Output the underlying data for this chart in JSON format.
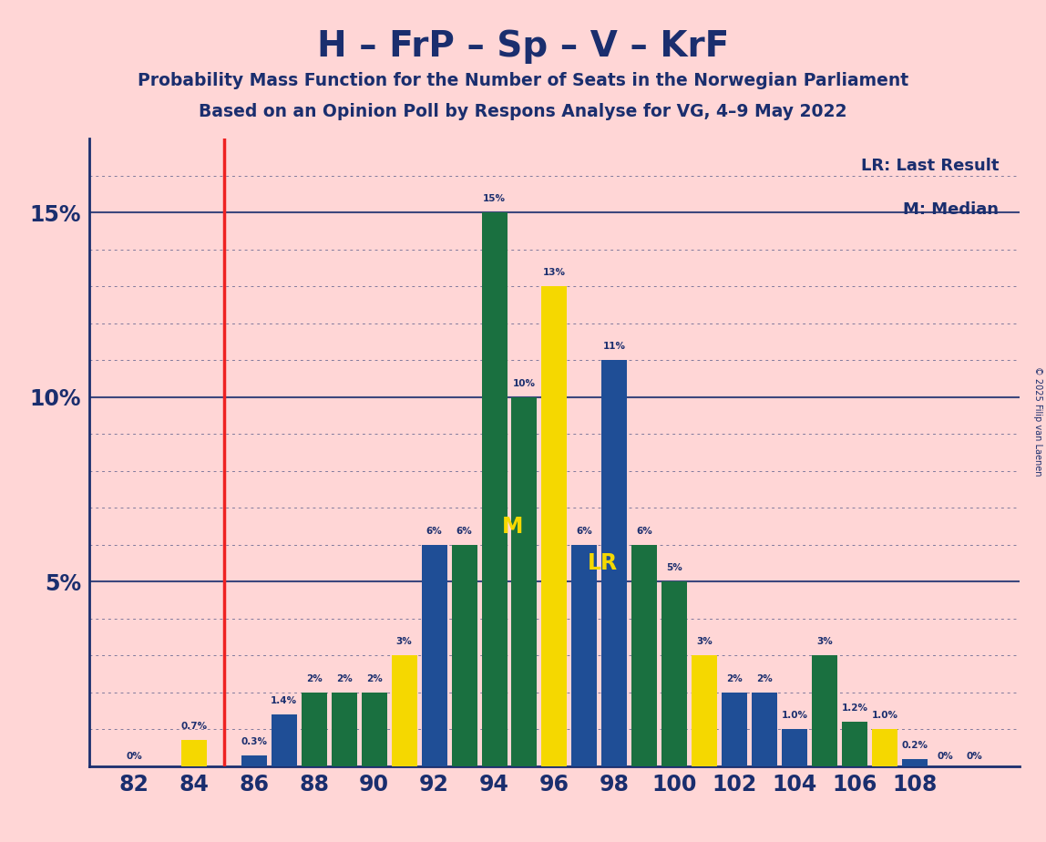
{
  "title": "H – FrP – Sp – V – KrF",
  "subtitle1": "Probability Mass Function for the Number of Seats in the Norwegian Parliament",
  "subtitle2": "Based on an Opinion Poll by Respons Analyse for VG, 4–9 May 2022",
  "copyright": "© 2025 Filip van Laenen",
  "background_color": "#ffd6d6",
  "bars": [
    {
      "x": 82,
      "value": 0.0,
      "color": "#1f4e96",
      "label": "0%"
    },
    {
      "x": 84,
      "value": 0.7,
      "color": "#f5d800",
      "label": "0.7%"
    },
    {
      "x": 86,
      "value": 0.3,
      "color": "#1f4e96",
      "label": "0.3%"
    },
    {
      "x": 87,
      "value": 1.4,
      "color": "#1f4e96",
      "label": "1.4%"
    },
    {
      "x": 88,
      "value": 2.0,
      "color": "#1a7040",
      "label": "2%"
    },
    {
      "x": 89,
      "value": 2.0,
      "color": "#1a7040",
      "label": "2%"
    },
    {
      "x": 90,
      "value": 2.0,
      "color": "#1a7040",
      "label": "2%"
    },
    {
      "x": 91,
      "value": 3.0,
      "color": "#f5d800",
      "label": "3%"
    },
    {
      "x": 92,
      "value": 6.0,
      "color": "#1f4e96",
      "label": "6%"
    },
    {
      "x": 93,
      "value": 6.0,
      "color": "#1a7040",
      "label": "6%"
    },
    {
      "x": 94,
      "value": 15.0,
      "color": "#1a7040",
      "label": "15%"
    },
    {
      "x": 95,
      "value": 10.0,
      "color": "#1a7040",
      "label": "10%"
    },
    {
      "x": 96,
      "value": 13.0,
      "color": "#f5d800",
      "label": "13%"
    },
    {
      "x": 97,
      "value": 6.0,
      "color": "#1f4e96",
      "label": "6%"
    },
    {
      "x": 98,
      "value": 11.0,
      "color": "#1f4e96",
      "label": "11%"
    },
    {
      "x": 99,
      "value": 6.0,
      "color": "#1a7040",
      "label": "6%"
    },
    {
      "x": 100,
      "value": 5.0,
      "color": "#1a7040",
      "label": "5%"
    },
    {
      "x": 101,
      "value": 3.0,
      "color": "#f5d800",
      "label": "3%"
    },
    {
      "x": 102,
      "value": 2.0,
      "color": "#1f4e96",
      "label": "2%"
    },
    {
      "x": 103,
      "value": 2.0,
      "color": "#1f4e96",
      "label": "2%"
    },
    {
      "x": 104,
      "value": 1.0,
      "color": "#1f4e96",
      "label": "1.0%"
    },
    {
      "x": 105,
      "value": 3.0,
      "color": "#1a7040",
      "label": "3%"
    },
    {
      "x": 106,
      "value": 1.2,
      "color": "#1a7040",
      "label": "1.2%"
    },
    {
      "x": 107,
      "value": 1.0,
      "color": "#f5d800",
      "label": "1.0%"
    },
    {
      "x": 108,
      "value": 0.2,
      "color": "#1f4e96",
      "label": "0.2%"
    },
    {
      "x": 109,
      "value": 0.0,
      "color": "#1f4e96",
      "label": "0%"
    },
    {
      "x": 110,
      "value": 0.0,
      "color": "#1f4e96",
      "label": "0%"
    }
  ],
  "lr_x": 85.0,
  "median_x": 95,
  "lr_line_color": "#ee2222",
  "title_color": "#1a2e6e",
  "subtitle_color": "#1a2e6e",
  "axis_color": "#1a2e6e",
  "bar_label_color": "#1a2e6e",
  "lr_label_color": "#f5d800",
  "median_label_color": "#f5d800",
  "legend_color": "#1a2e6e",
  "xlim": [
    80.5,
    111.5
  ],
  "ylim": [
    0,
    17.0
  ],
  "xticks": [
    82,
    84,
    86,
    88,
    90,
    92,
    94,
    96,
    98,
    100,
    102,
    104,
    106,
    108
  ],
  "ytick_vals": [
    5,
    10,
    15
  ],
  "ytick_labels": [
    "5%",
    "10%",
    "15%"
  ],
  "grid_minor_step": 1.0,
  "grid_major_vals": [
    5,
    10,
    15
  ],
  "bar_width": 0.85
}
